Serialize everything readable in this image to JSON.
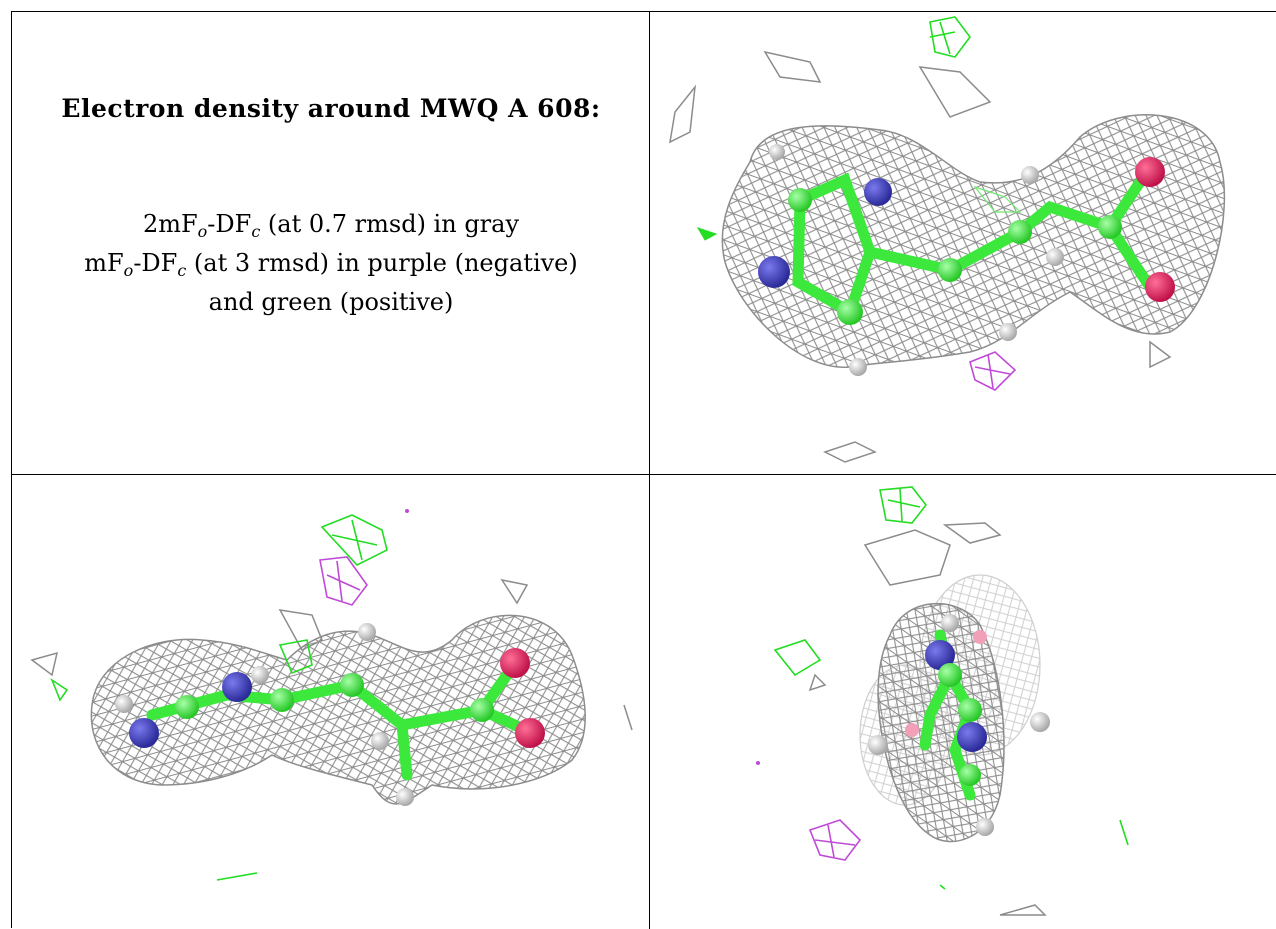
{
  "caption": {
    "title": "Electron density around MWQ A 608:",
    "line1": {
      "a": "2mF",
      "sub_o": "o",
      "b": "-DF",
      "sub_c": "c",
      "rest": " (at 0.7 rmsd) in gray"
    },
    "line2": {
      "a": "mF",
      "sub_o": "o",
      "b": "-DF",
      "sub_c": "c",
      "rest": " (at 3 rmsd) in purple (negative)"
    },
    "line3": "and green (positive)"
  },
  "colors": {
    "mesh_2fofc": "#8c8c8c",
    "mesh_fofc_negative": "#c04ad8",
    "mesh_fofc_positive": "#22dd22",
    "carbon": "#3de83d",
    "nitrogen": "#3a3ab8",
    "oxygen": "#e0215a",
    "hydrogen": "#dcdcdc"
  },
  "panels": [
    "view-1",
    "view-2",
    "view-3"
  ]
}
